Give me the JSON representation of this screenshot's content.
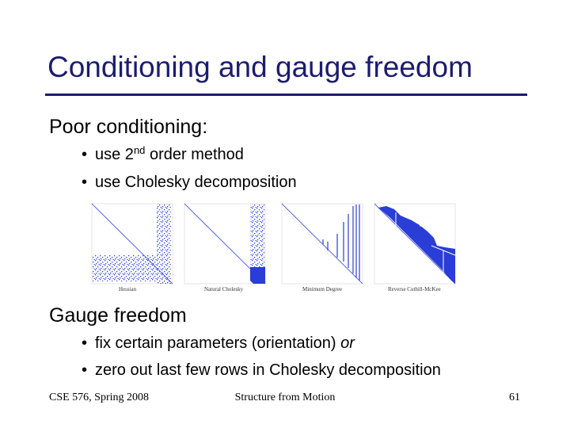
{
  "title": "Conditioning and gauge freedom",
  "sections": [
    {
      "heading": "Poor conditioning:",
      "bullets": [
        {
          "parts": [
            "use 2",
            "nd",
            " order method"
          ]
        },
        {
          "parts": [
            "use Cholesky decomposition"
          ]
        }
      ]
    },
    {
      "heading": "Gauge freedom",
      "bullets": [
        {
          "parts": [
            "fix certain parameters (orientation)  ",
            "or"
          ]
        },
        {
          "parts": [
            "zero out last few rows in Cholesky decomposition"
          ]
        }
      ]
    }
  ],
  "figure": {
    "captions": [
      "Hessian",
      "Natural Cholesky",
      "Minimum Degree",
      "Reverse Cuthill-McKee"
    ]
  },
  "footer": {
    "left": "CSE 576, Spring 2008",
    "center": "Structure from Motion",
    "right": "61"
  }
}
